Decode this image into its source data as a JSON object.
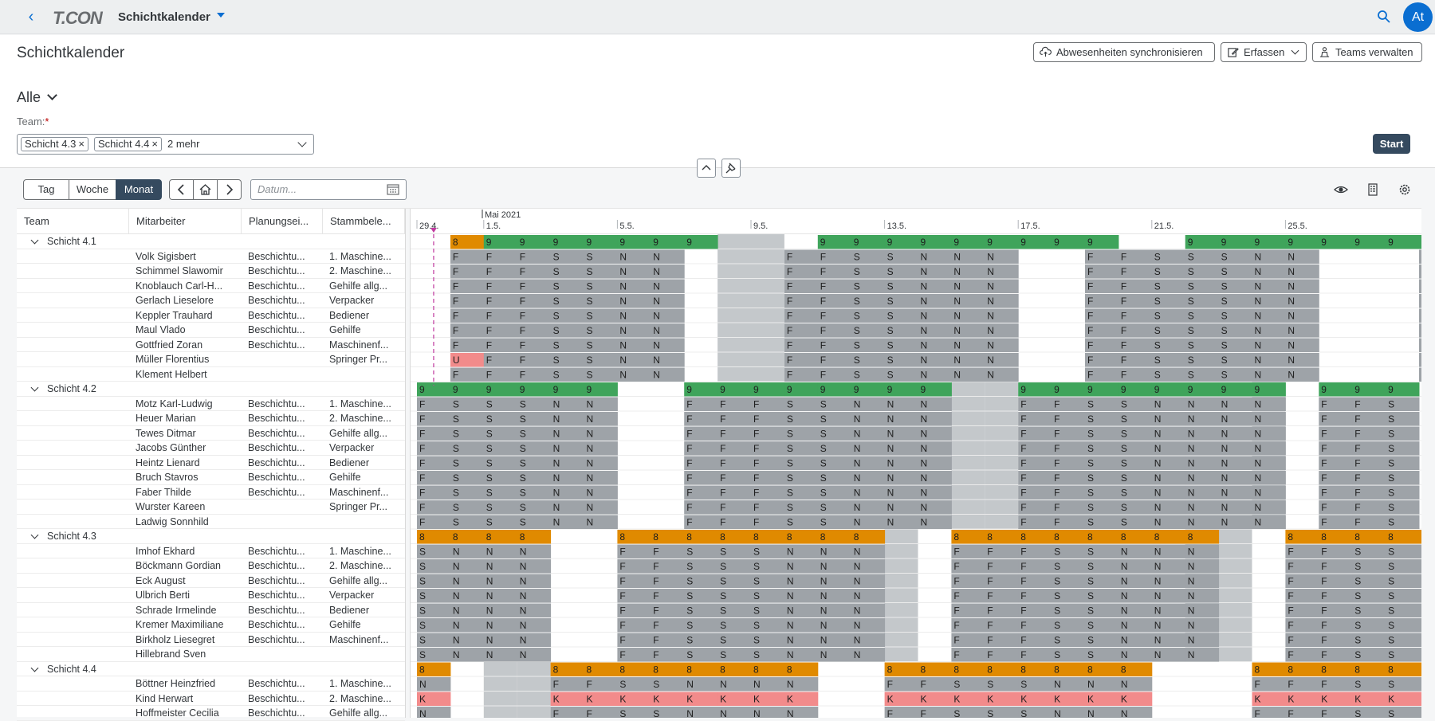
{
  "shell": {
    "logo": "T.CON",
    "app_title": "Schichtkalender",
    "avatar": "At"
  },
  "page": {
    "title": "Schichtkalender",
    "variant": "Alle",
    "buttons": {
      "sync": "Abwesenheiten synchronisieren",
      "create": "Erfassen",
      "teams": "Teams verwalten"
    },
    "team_label": "Team:",
    "required_mark": "*",
    "team_tokens": [
      "Schicht 4.3",
      "Schicht 4.4"
    ],
    "team_more": "2 mehr",
    "start": "Start"
  },
  "toolbar": {
    "views": [
      "Tag",
      "Woche",
      "Monat"
    ],
    "active_view": "Monat",
    "date_placeholder": "Datum..."
  },
  "table": {
    "columns": [
      "Team",
      "Mitarbeiter",
      "Planungsei...",
      "Stammbele..."
    ]
  },
  "calendar": {
    "month_label": "Mai 2021",
    "date_labels": [
      {
        "day": 0,
        "label": "29.4."
      },
      {
        "day": 2,
        "label": "1.5."
      },
      {
        "day": 6,
        "label": "5.5."
      },
      {
        "day": 10,
        "label": "9.5."
      },
      {
        "day": 14,
        "label": "13.5."
      },
      {
        "day": 18,
        "label": "17.5."
      },
      {
        "day": 22,
        "label": "21.5."
      },
      {
        "day": 26,
        "label": "25.5."
      }
    ],
    "colors": {
      "green": "#3fa45b",
      "orange": "#e08a00",
      "grey": "#9ea3a8",
      "light_grey": "#c4c8cb",
      "red": "#f28b8b",
      "today": "#c0399f"
    },
    "groups": [
      {
        "name": "Schicht 4.1",
        "summary": "_89999999___999999999__999999999___9",
        "weekend_days": [
          9,
          10
        ],
        "members": [
          {
            "name": "Volk Sigisbert",
            "plan": "Beschichtu...",
            "stamm": "1. Maschine...",
            "codes": "_FFFSSNN___FFSSNNN__FFSSSNN___F"
          },
          {
            "name": "Schimmel Slawomir",
            "plan": "Beschichtu...",
            "stamm": "2. Maschine...",
            "codes": "_FFFSSNN___FFSSNNN__FFSSSNN___F"
          },
          {
            "name": "Knoblauch Carl-H...",
            "plan": "Beschichtu...",
            "stamm": "Gehilfe allg...",
            "codes": "_FFFSSNN___FFSSNNN__FFSSSNN___F"
          },
          {
            "name": "Gerlach Lieselore",
            "plan": "Beschichtu...",
            "stamm": "Verpacker",
            "codes": "_FFFSSNN___FFSSNNN__FFSSSNN___F"
          },
          {
            "name": "Keppler Trauhard",
            "plan": "Beschichtu...",
            "stamm": "Bediener",
            "codes": "_FFFSSNN___FFSSNNN__FFSSSNN___F"
          },
          {
            "name": "Maul Vlado",
            "plan": "Beschichtu...",
            "stamm": "Gehilfe",
            "codes": "_FFFSSNN___FFSSNNN__FFSSSNN___F"
          },
          {
            "name": "Gottfried Zoran",
            "plan": "Beschichtu...",
            "stamm": "Maschinenf...",
            "codes": "_FFFSSNN___FFSSNNN__FFSSSNN___F"
          },
          {
            "name": "Müller Florentius",
            "plan": "",
            "stamm": "Springer Pr...",
            "codes": "_UFFSSNN___FFSSNNN__FFSSSNN___F"
          },
          {
            "name": "Klement Helbert",
            "plan": "",
            "stamm": "",
            "codes": "_FFFSSNN___FFSSNNN__FFSSSNN___F"
          }
        ]
      },
      {
        "name": "Schicht 4.2",
        "summary": "999999__99999999__99999999_999",
        "weekend_days": [
          16,
          17,
          25
        ],
        "members": [
          {
            "name": "Motz Karl-Ludwig",
            "plan": "Beschichtu...",
            "stamm": "1. Maschine...",
            "codes": "FSSSNN__FFFSSNNN__FFSSNNNN_FFS"
          },
          {
            "name": "Heuer Marian",
            "plan": "Beschichtu...",
            "stamm": "2. Maschine...",
            "codes": "FSSSNN__FFFSSNNN__FFSSNNNN_FFS"
          },
          {
            "name": "Tewes Ditmar",
            "plan": "Beschichtu...",
            "stamm": "Gehilfe allg...",
            "codes": "FSSSNN__FFFSSNNN__FFSSNNNN_FFS"
          },
          {
            "name": "Jacobs Günther",
            "plan": "Beschichtu...",
            "stamm": "Verpacker",
            "codes": "FSSSNN__FFFSSNNN__FFSSNNNN_FFS"
          },
          {
            "name": "Heintz Lienard",
            "plan": "Beschichtu...",
            "stamm": "Bediener",
            "codes": "FSSSNN__FFFSSNNN__FFSSNNNN_FFS"
          },
          {
            "name": "Bruch Stavros",
            "plan": "Beschichtu...",
            "stamm": "Gehilfe",
            "codes": "FSSSNN__FFFSSNNN__FFSSNNNN_FFS"
          },
          {
            "name": "Faber Thilde",
            "plan": "Beschichtu...",
            "stamm": "Maschinenf...",
            "codes": "FSSSNN__FFFSSNNN__FFSSNNNN_FFS"
          },
          {
            "name": "Wurster Kareen",
            "plan": "",
            "stamm": "Springer Pr...",
            "codes": "FSSSNN__FFFSSNNN__FFSSNNNN_FFS"
          },
          {
            "name": "Ladwig Sonnhild",
            "plan": "",
            "stamm": "",
            "codes": "FSSSNN__FFFSSNNN__FFSSNNNN_FFS"
          }
        ]
      },
      {
        "name": "Schicht 4.3",
        "summary": "8888__88888888__88888888__88888",
        "weekend_days": [
          14,
          23,
          24
        ],
        "members": [
          {
            "name": "Imhof Ekhard",
            "plan": "Beschichtu...",
            "stamm": "1. Maschine...",
            "codes": "SNNN__FFSSSNNN__FFFSSNNN__FFSSN"
          },
          {
            "name": "Böckmann Gordian",
            "plan": "Beschichtu...",
            "stamm": "2. Maschine...",
            "codes": "SNNN__FFSSSNNN__FFFSSNNN__FFSSN"
          },
          {
            "name": "Eck August",
            "plan": "Beschichtu...",
            "stamm": "Gehilfe allg...",
            "codes": "SNNN__FFSSSNNN__FFFSSNNN__FFSSN"
          },
          {
            "name": "Ulbrich Berti",
            "plan": "Beschichtu...",
            "stamm": "Verpacker",
            "codes": "SNNN__FFSSSNNN__FFFSSNNN__FFSSN"
          },
          {
            "name": "Schrade Irmelinde",
            "plan": "Beschichtu...",
            "stamm": "Bediener",
            "codes": "SNNN__FFSSSNNN__FFFSSNNN__FFSSN"
          },
          {
            "name": "Kremer Maximiliane",
            "plan": "Beschichtu...",
            "stamm": "Gehilfe",
            "codes": "SNNN__FFSSSNNN__FFFSSNNN__FFSSN"
          },
          {
            "name": "Birkholz Liesegret",
            "plan": "Beschichtu...",
            "stamm": "Maschinenf...",
            "codes": "SNNN__FFSSSNNN__FFFSSNNN__FFSSN"
          },
          {
            "name": "Hillebrand Sven",
            "plan": "",
            "stamm": "",
            "codes": "SNNN__FFSSSNNN__FFFSSNNN__FFSSN"
          }
        ]
      },
      {
        "name": "Schicht 4.4",
        "summary": "8___88888888__88888888___8888888_",
        "weekend_days": [
          2,
          3
        ],
        "members": [
          {
            "name": "Böttner Heinzfried",
            "plan": "Beschichtu...",
            "stamm": "1. Maschine...",
            "codes": "N___FFSSNNNN__FFSSSNNN___FFFSSNN_"
          },
          {
            "name": "Kind Herwart",
            "plan": "Beschichtu...",
            "stamm": "2. Maschine...",
            "codes": "K___KKKKKKKK__KKKKKKKK___KKKKKKK_"
          },
          {
            "name": "Hoffmeister Cecilia",
            "plan": "Beschichtu...",
            "stamm": "Gehilfe allg...",
            "codes": "N___FFSSNNNN__FFSSSNNN___FFFSSNN_"
          }
        ]
      }
    ]
  }
}
